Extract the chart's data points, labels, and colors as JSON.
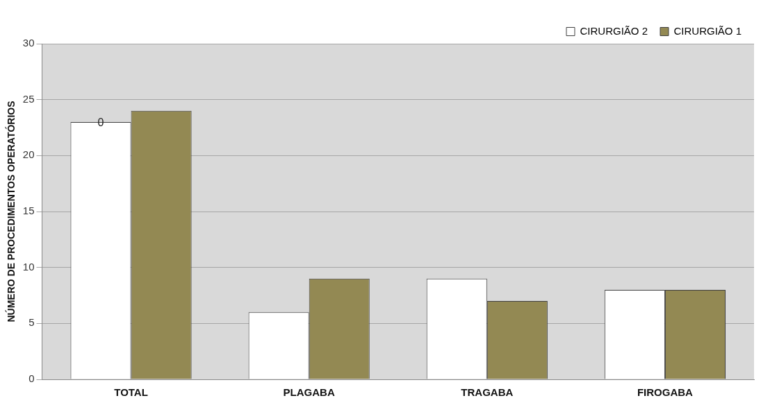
{
  "chart_data": {
    "type": "bar",
    "ylabel": "NÚMERO DE PROCEDIMENTOS OPERATÓRIOS",
    "categories": [
      "TOTAL",
      "PLAGABA",
      "TRAGABA",
      "FIROGABA"
    ],
    "series": [
      {
        "name": "CIRURGIÃO 2",
        "color": "#ffffff",
        "values": [
          23,
          6,
          9,
          8
        ]
      },
      {
        "name": "CIRURGIÃO 1",
        "color": "#938953",
        "values": [
          24,
          9,
          7,
          8
        ]
      }
    ],
    "ylim": [
      0,
      30
    ],
    "yticks": [
      0,
      5,
      10,
      15,
      20,
      25,
      30
    ],
    "grid": "y",
    "legend": "top right",
    "annotations": [
      {
        "text": "0",
        "x": "TOTAL",
        "y": 23
      }
    ]
  }
}
